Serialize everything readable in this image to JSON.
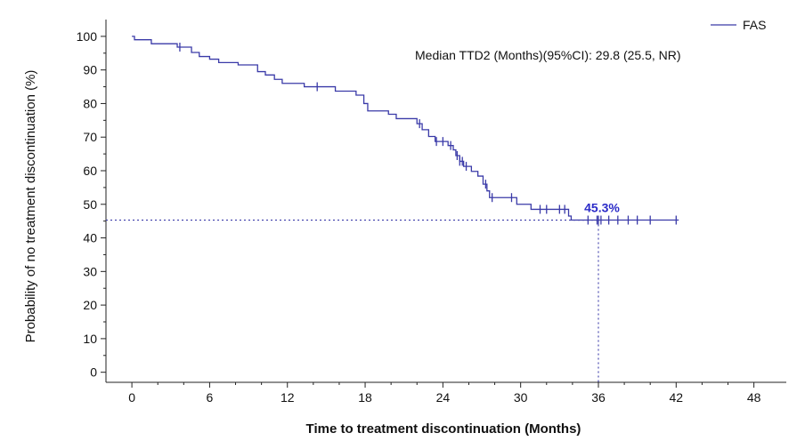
{
  "chart_data": {
    "type": "line",
    "subtype": "kaplan-meier",
    "title": "",
    "xlabel": "Time to treatment discontinuation (Months)",
    "ylabel": "Probability of no treatment discontinuation (%)",
    "xlim": [
      -2,
      50.5
    ],
    "ylim": [
      -3,
      105
    ],
    "xticks": [
      0,
      6,
      12,
      18,
      24,
      30,
      36,
      42,
      48
    ],
    "yticks": [
      0,
      10,
      20,
      30,
      40,
      50,
      60,
      70,
      80,
      90,
      100
    ],
    "line_color": "#3a3aa8",
    "legend": {
      "label": "FAS",
      "position": "top-right"
    },
    "annotation": "Median TTD2 (Months)(95%CI): 29.8 (25.5, NR)",
    "reference": {
      "x": 36,
      "y": 45.3,
      "label": "45.3%"
    },
    "series": [
      {
        "name": "FAS",
        "steps": [
          [
            0,
            100
          ],
          [
            0.2,
            99
          ],
          [
            1.5,
            97.8
          ],
          [
            3.5,
            96.8
          ],
          [
            4.6,
            95.2
          ],
          [
            5.2,
            94.0
          ],
          [
            6.0,
            93.2
          ],
          [
            6.7,
            92.2
          ],
          [
            8.2,
            91.5
          ],
          [
            9.7,
            89.5
          ],
          [
            10.3,
            88.5
          ],
          [
            11.0,
            87.2
          ],
          [
            11.6,
            86.0
          ],
          [
            13.3,
            85.0
          ],
          [
            15.7,
            83.7
          ],
          [
            17.3,
            82.5
          ],
          [
            17.9,
            80.0
          ],
          [
            18.2,
            77.8
          ],
          [
            19.8,
            76.8
          ],
          [
            20.4,
            75.5
          ],
          [
            22.0,
            74.0
          ],
          [
            22.4,
            72.2
          ],
          [
            22.9,
            70.2
          ],
          [
            23.4,
            68.7
          ],
          [
            24.4,
            67.5
          ],
          [
            24.8,
            66.2
          ],
          [
            25.0,
            64.5
          ],
          [
            25.3,
            62.8
          ],
          [
            25.6,
            61.3
          ],
          [
            26.2,
            59.8
          ],
          [
            26.7,
            58.4
          ],
          [
            27.1,
            56.0
          ],
          [
            27.4,
            54.0
          ],
          [
            27.6,
            52.0
          ],
          [
            29.7,
            50.0
          ],
          [
            30.8,
            48.5
          ],
          [
            33.7,
            46.5
          ],
          [
            33.9,
            45.3
          ],
          [
            42.2,
            45.3
          ]
        ],
        "censor_x": [
          3.7,
          14.3,
          22.2,
          23.5,
          24.0,
          24.6,
          25.1,
          25.3,
          25.5,
          25.8,
          27.3,
          27.8,
          29.3,
          31.5,
          32.0,
          33.0,
          33.4,
          35.2,
          35.9,
          36.0,
          36.2,
          36.8,
          37.5,
          38.3,
          39.0,
          40.0,
          42.0
        ]
      }
    ]
  }
}
